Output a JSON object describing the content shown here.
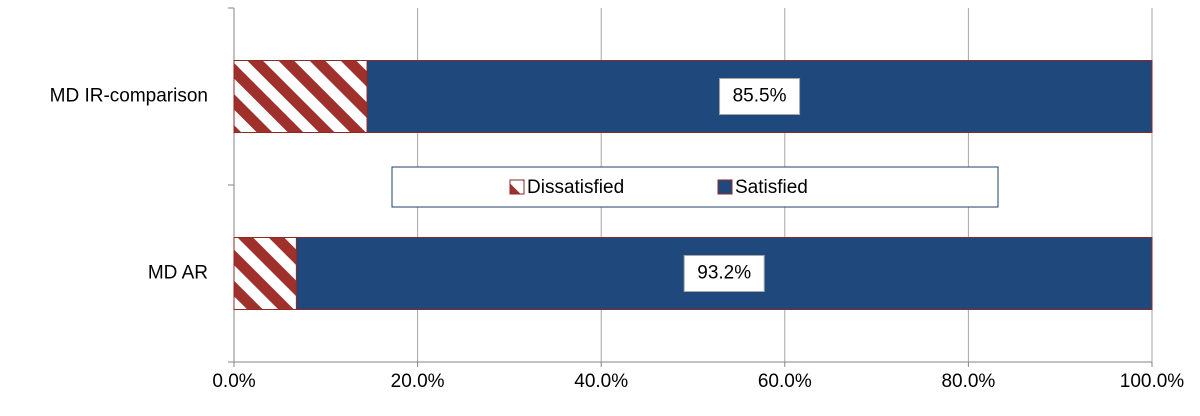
{
  "chart_data": {
    "type": "stacked-bar-horizontal",
    "categories": [
      "MD IR-comparison",
      "MD AR"
    ],
    "series": [
      {
        "name": "Dissatisfied",
        "color": "#a0302c",
        "pattern": "hatch",
        "values": [
          14.5,
          6.8
        ]
      },
      {
        "name": "Satisfied",
        "color": "#1f497d",
        "values": [
          85.5,
          93.2
        ],
        "value_labels": [
          "85.5%",
          "93.2%"
        ]
      }
    ],
    "xlim": [
      0,
      100
    ],
    "xticks": [
      {
        "value": 0,
        "label": "0.0%"
      },
      {
        "value": 20,
        "label": "20.0%"
      },
      {
        "value": 40,
        "label": "40.0%"
      },
      {
        "value": 60,
        "label": "60.0%"
      },
      {
        "value": 80,
        "label": "80.0%"
      },
      {
        "value": 100,
        "label": "100.0%"
      }
    ],
    "grid": true,
    "legend": "center"
  }
}
